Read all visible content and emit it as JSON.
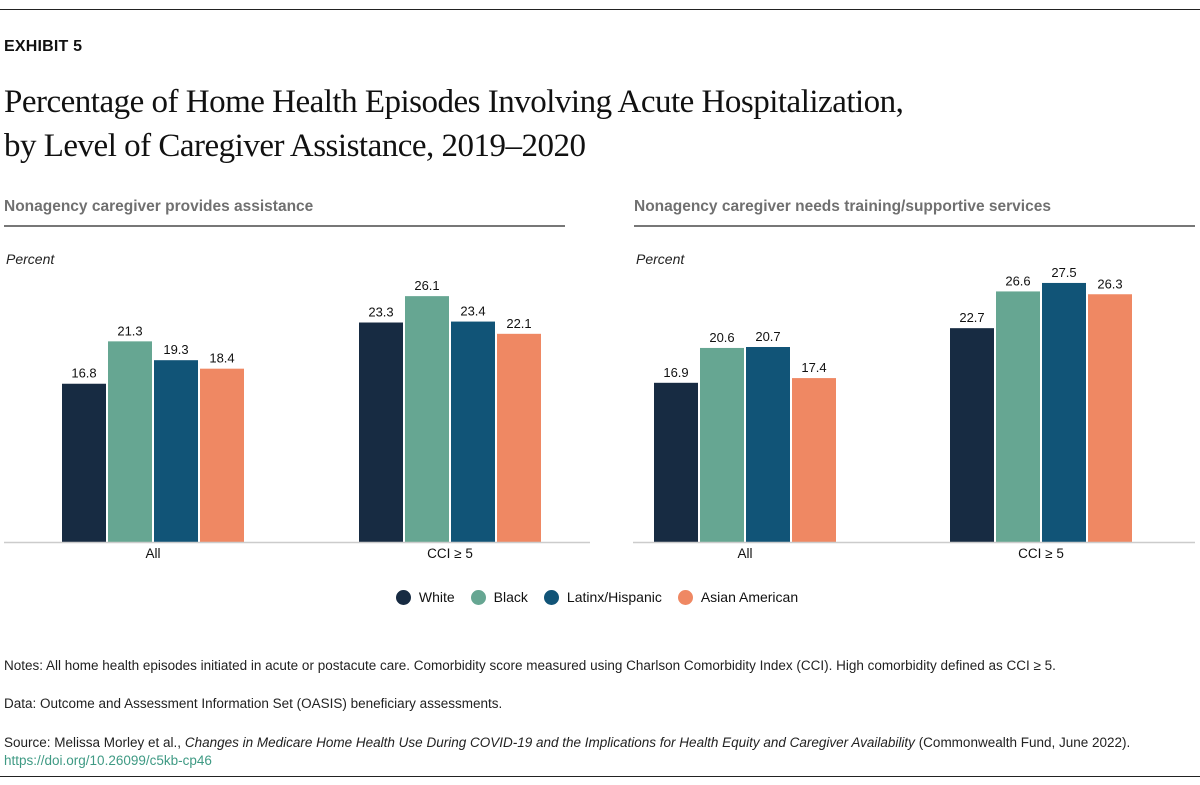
{
  "exhibit_label": "EXHIBIT 5",
  "title_line1": "Percentage of Home Health Episodes Involving Acute Hospitalization,",
  "title_line2": "by Level of Caregiver Assistance, 2019–2020",
  "colors": {
    "White": "#172b42",
    "Black": "#66a692",
    "Latinx/Hispanic": "#115477",
    "Asian American": "#ef8863"
  },
  "legend": [
    "White",
    "Black",
    "Latinx/Hispanic",
    "Asian American"
  ],
  "chart_data": [
    {
      "type": "bar",
      "title": "Nonagency caregiver provides assistance",
      "ylabel": "Percent",
      "categories": [
        "All",
        "CCI ≥ 5"
      ],
      "ylim": [
        0,
        29
      ],
      "grid": false,
      "legend_placement": "bottom",
      "series": [
        {
          "name": "White",
          "values": [
            16.8,
            23.3
          ]
        },
        {
          "name": "Black",
          "values": [
            21.3,
            26.1
          ]
        },
        {
          "name": "Latinx/Hispanic",
          "values": [
            19.3,
            23.4
          ]
        },
        {
          "name": "Asian American",
          "values": [
            18.4,
            22.1
          ]
        }
      ]
    },
    {
      "type": "bar",
      "title": "Nonagency caregiver needs training/supportive services",
      "ylabel": "Percent",
      "categories": [
        "All",
        "CCI ≥ 5"
      ],
      "ylim": [
        0,
        29
      ],
      "grid": false,
      "legend_placement": "bottom",
      "series": [
        {
          "name": "White",
          "values": [
            16.9,
            22.7
          ]
        },
        {
          "name": "Black",
          "values": [
            20.6,
            26.6
          ]
        },
        {
          "name": "Latinx/Hispanic",
          "values": [
            20.7,
            27.5
          ]
        },
        {
          "name": "Asian American",
          "values": [
            17.4,
            26.3
          ]
        }
      ]
    }
  ],
  "notes": "Notes: All home health episodes initiated in acute or postacute care. Comorbidity score measured using Charlson Comorbidity Index (CCI). High comorbidity defined as CCI ≥ 5.",
  "data_note": "Data: Outcome and Assessment Information Set (OASIS) beneficiary assessments.",
  "source_prefix": "Source: Melissa Morley et al., ",
  "source_title": "Changes in Medicare Home Health Use During COVID-19 and the Implications for Health Equity and Caregiver Availability",
  "source_suffix": " (Commonwealth Fund, June 2022).",
  "source_link": "https://doi.org/10.26099/c5kb-cp46"
}
